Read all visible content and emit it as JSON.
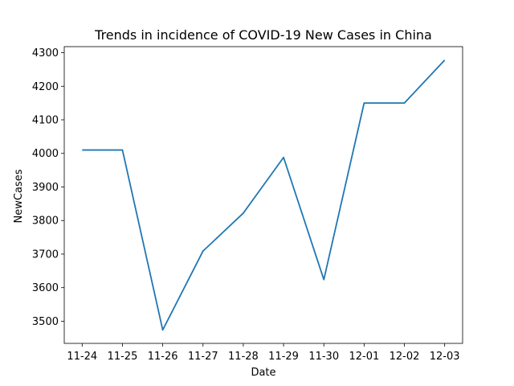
{
  "chart_data": {
    "type": "line",
    "title": "Trends in incidence of COVID-19 New Cases in China",
    "xlabel": "Date",
    "ylabel": "NewCases",
    "categories": [
      "11-24",
      "11-25",
      "11-26",
      "11-27",
      "11-28",
      "11-29",
      "11-30",
      "12-01",
      "12-02",
      "12-03"
    ],
    "series": [
      {
        "values": [
          4010,
          4010,
          3474,
          3709,
          3822,
          3988,
          3624,
          4150,
          4150,
          4278
        ],
        "color": "#1f77b4"
      }
    ],
    "yticks": [
      3500,
      3600,
      3700,
      3800,
      3900,
      4000,
      4100,
      4200,
      4300
    ],
    "ylim": [
      3434,
      4318
    ],
    "grid": false,
    "legend": "none"
  }
}
